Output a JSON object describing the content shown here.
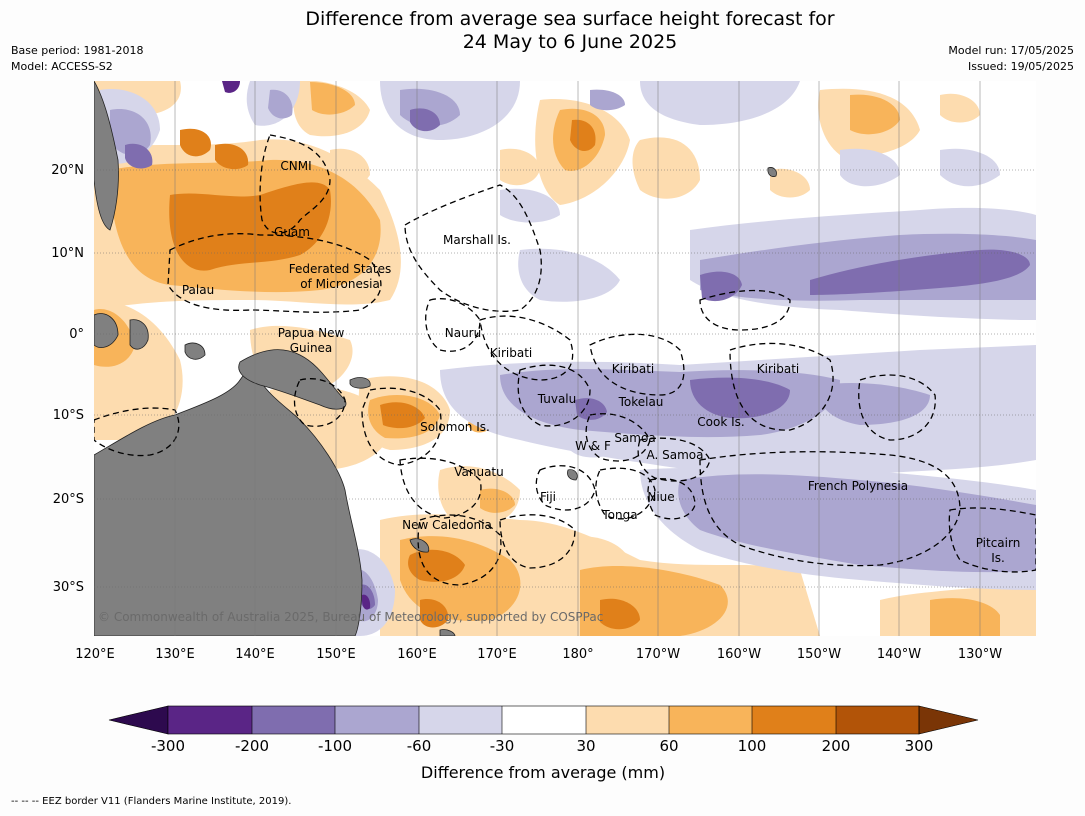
{
  "header": {
    "title_line1": "Difference from average sea surface height forecast for",
    "title_line2": "24 May to 6 June 2025",
    "base_period": "Base period: 1981-2018",
    "model": "Model: ACCESS-S2",
    "model_run": "Model run: 17/05/2025",
    "issued": "Issued: 19/05/2025"
  },
  "map": {
    "lon_labels": [
      "120°E",
      "130°E",
      "140°E",
      "150°E",
      "160°E",
      "170°E",
      "180°",
      "170°W",
      "160°W",
      "150°W",
      "140°W",
      "130°W"
    ],
    "lat_labels": [
      "20°N",
      "10°N",
      "0°",
      "10°S",
      "20°S",
      "30°S"
    ],
    "copyright": "© Commonwealth of Australia 2025, Bureau of Meteorology, supported by COSPPac",
    "land_color": "#808080",
    "ocean_neutral_color": "#ffffff",
    "places": [
      {
        "name": "CNMI"
      },
      {
        "name": "Guam"
      },
      {
        "name": "Marshall Is."
      },
      {
        "name": "Federated States"
      },
      {
        "name": "of Micronesia"
      },
      {
        "name": "Palau"
      },
      {
        "name": "Papua New"
      },
      {
        "name": "Guinea"
      },
      {
        "name": "Nauru"
      },
      {
        "name": "Kiribati"
      },
      {
        "name": "Kiribati"
      },
      {
        "name": "Kiribati"
      },
      {
        "name": "Tuvalu"
      },
      {
        "name": "Tokelau"
      },
      {
        "name": "Cook Is."
      },
      {
        "name": "Solomon Is."
      },
      {
        "name": "W & F"
      },
      {
        "name": "Samoa"
      },
      {
        "name": "A. Samoa"
      },
      {
        "name": "Vanuatu"
      },
      {
        "name": "Fiji"
      },
      {
        "name": "Niue"
      },
      {
        "name": "Tonga"
      },
      {
        "name": "French Polynesia"
      },
      {
        "name": "New Caledonia"
      },
      {
        "name": "Pitcairn"
      },
      {
        "name": "Is."
      }
    ]
  },
  "colorbar": {
    "ticks": [
      "-300",
      "-200",
      "-100",
      "-60",
      "-30",
      "30",
      "60",
      "100",
      "200",
      "300"
    ],
    "colors": [
      "#2d0a4e",
      "#5a2586",
      "#7f6daf",
      "#aba6d0",
      "#d6d6ea",
      "#ffffff",
      "#fddcaf",
      "#f8b45a",
      "#e0801a",
      "#b25408",
      "#7a3506"
    ],
    "label": "Difference from average (mm)"
  },
  "footer": {
    "eez_note": "-- -- -- EEZ border V11 (Flanders Marine Institute, 2019)."
  }
}
